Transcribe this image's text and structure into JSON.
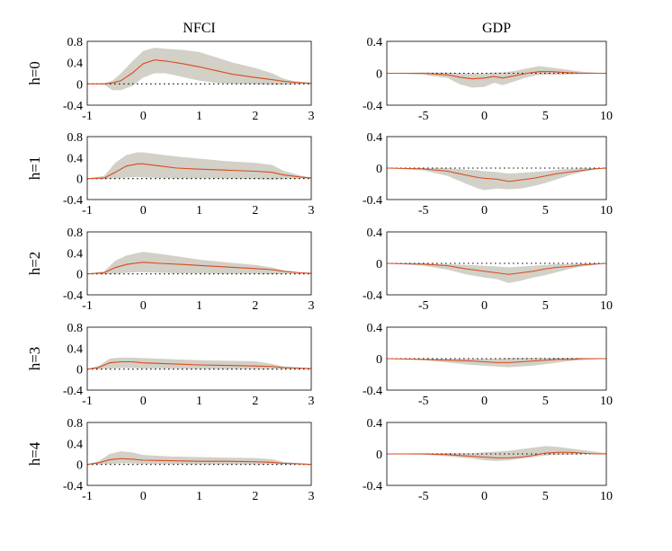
{
  "chart_data": {
    "type": "line",
    "columns": [
      {
        "title": "NFCI",
        "x_ticks": [
          -1,
          0,
          1,
          2,
          3
        ],
        "xlim": [
          -1,
          3
        ],
        "ylim": [
          -0.4,
          0.8
        ],
        "y_ticks": [
          0.8,
          0.4,
          0,
          -0.4
        ],
        "y_tick_labels": [
          "0.8",
          "0.4",
          "0",
          "-0.4"
        ]
      },
      {
        "title": "GDP",
        "x_ticks": [
          -5,
          0,
          5,
          10
        ],
        "xlim": [
          -8,
          10
        ],
        "ylim": [
          -0.4,
          0.4
        ],
        "y_ticks": [
          0.4,
          0,
          -0.4
        ],
        "y_tick_labels": [
          "0.4",
          "0",
          "-0.4"
        ]
      }
    ],
    "rows": [
      {
        "label": "h=0",
        "nfci": {
          "x": [
            -1,
            -0.7,
            -0.55,
            -0.4,
            -0.2,
            0,
            0.2,
            0.4,
            0.7,
            1.0,
            1.3,
            1.6,
            2.0,
            2.3,
            2.5,
            2.7,
            3.0
          ],
          "median": [
            0,
            0,
            0.02,
            0.06,
            0.2,
            0.38,
            0.45,
            0.43,
            0.38,
            0.32,
            0.25,
            0.18,
            0.12,
            0.08,
            0.05,
            0.03,
            0.01
          ],
          "upper": [
            0,
            0.01,
            0.06,
            0.2,
            0.42,
            0.62,
            0.68,
            0.66,
            0.64,
            0.6,
            0.5,
            0.4,
            0.3,
            0.2,
            0.1,
            0.05,
            0.02
          ],
          "lower": [
            0,
            -0.01,
            -0.12,
            -0.12,
            -0.04,
            0.12,
            0.2,
            0.2,
            0.13,
            0.06,
            0.02,
            0,
            -0.01,
            -0.02,
            -0.02,
            -0.01,
            0
          ]
        },
        "gdp": {
          "x": [
            -8,
            -5,
            -3,
            -2,
            -1,
            0,
            0.8,
            1.5,
            2.5,
            3.5,
            4.5,
            5.5,
            6.5,
            8,
            10
          ],
          "median": [
            0,
            0,
            -0.02,
            -0.05,
            -0.07,
            -0.06,
            -0.04,
            -0.06,
            -0.03,
            0,
            0.02,
            0.02,
            0.01,
            0,
            0
          ],
          "upper": [
            0,
            0.01,
            0.01,
            0,
            0,
            0,
            0.01,
            0.01,
            0.03,
            0.06,
            0.09,
            0.07,
            0.05,
            0.02,
            0
          ],
          "lower": [
            0,
            -0.02,
            -0.06,
            -0.14,
            -0.18,
            -0.17,
            -0.12,
            -0.15,
            -0.1,
            -0.05,
            -0.02,
            -0.02,
            -0.02,
            -0.01,
            0
          ]
        }
      },
      {
        "label": "h=1",
        "nfci": {
          "x": [
            -1,
            -0.7,
            -0.5,
            -0.3,
            -0.1,
            0,
            0.3,
            0.6,
            1.0,
            1.5,
            2.0,
            2.3,
            2.5,
            2.8,
            3.0
          ],
          "median": [
            0,
            0.01,
            0.12,
            0.24,
            0.28,
            0.28,
            0.24,
            0.2,
            0.18,
            0.16,
            0.14,
            0.12,
            0.07,
            0.03,
            0.01
          ],
          "upper": [
            0,
            0.05,
            0.3,
            0.45,
            0.5,
            0.5,
            0.46,
            0.42,
            0.38,
            0.33,
            0.3,
            0.26,
            0.15,
            0.06,
            0.02
          ],
          "lower": [
            0,
            -0.01,
            0,
            0.02,
            0.03,
            0.02,
            0.01,
            0,
            0,
            0,
            -0.01,
            -0.02,
            -0.01,
            0,
            0
          ]
        },
        "gdp": {
          "x": [
            -8,
            -5,
            -3,
            -1.5,
            -0.5,
            0,
            1,
            2,
            3,
            4,
            5,
            6,
            7,
            8,
            9,
            10
          ],
          "median": [
            0,
            -0.01,
            -0.04,
            -0.09,
            -0.12,
            -0.13,
            -0.14,
            -0.17,
            -0.15,
            -0.13,
            -0.1,
            -0.07,
            -0.05,
            -0.03,
            -0.01,
            0
          ],
          "upper": [
            0,
            0,
            0,
            -0.02,
            -0.03,
            -0.04,
            -0.05,
            -0.07,
            -0.06,
            -0.05,
            -0.04,
            -0.02,
            -0.01,
            0,
            0,
            0
          ],
          "lower": [
            0,
            -0.03,
            -0.1,
            -0.2,
            -0.26,
            -0.28,
            -0.26,
            -0.27,
            -0.26,
            -0.23,
            -0.19,
            -0.14,
            -0.09,
            -0.05,
            -0.02,
            0
          ]
        }
      },
      {
        "label": "h=2",
        "nfci": {
          "x": [
            -1,
            -0.7,
            -0.5,
            -0.3,
            -0.1,
            0,
            0.3,
            0.7,
            1.0,
            1.5,
            2.0,
            2.3,
            2.5,
            2.8,
            3.0
          ],
          "median": [
            0,
            0.02,
            0.12,
            0.18,
            0.21,
            0.22,
            0.2,
            0.18,
            0.16,
            0.13,
            0.1,
            0.08,
            0.05,
            0.02,
            0.01
          ],
          "upper": [
            0,
            0.05,
            0.25,
            0.35,
            0.4,
            0.42,
            0.38,
            0.32,
            0.27,
            0.22,
            0.17,
            0.12,
            0.07,
            0.03,
            0.01
          ],
          "lower": [
            0,
            -0.01,
            0,
            0.02,
            0.03,
            0.03,
            0.02,
            0.01,
            0.01,
            0,
            0,
            -0.01,
            0,
            0,
            0
          ]
        },
        "gdp": {
          "x": [
            -8,
            -5,
            -3,
            -1.5,
            0,
            1,
            2,
            3,
            4,
            5,
            6,
            7,
            8,
            9,
            10
          ],
          "median": [
            0,
            -0.01,
            -0.03,
            -0.07,
            -0.1,
            -0.12,
            -0.14,
            -0.12,
            -0.1,
            -0.07,
            -0.05,
            -0.04,
            -0.02,
            -0.01,
            0
          ],
          "upper": [
            0,
            0,
            -0.01,
            -0.02,
            -0.03,
            -0.04,
            -0.05,
            -0.04,
            -0.03,
            -0.02,
            -0.01,
            -0.01,
            0,
            0,
            0
          ],
          "lower": [
            0,
            -0.03,
            -0.08,
            -0.14,
            -0.18,
            -0.2,
            -0.25,
            -0.22,
            -0.18,
            -0.15,
            -0.11,
            -0.07,
            -0.04,
            -0.02,
            0
          ]
        }
      },
      {
        "label": "h=3",
        "nfci": {
          "x": [
            -1,
            -0.8,
            -0.6,
            -0.4,
            -0.2,
            0,
            0.5,
            1.0,
            1.5,
            2.0,
            2.3,
            2.5,
            2.8,
            3.0
          ],
          "median": [
            0,
            0.03,
            0.12,
            0.14,
            0.14,
            0.12,
            0.1,
            0.08,
            0.07,
            0.06,
            0.05,
            0.03,
            0.02,
            0.01
          ],
          "upper": [
            0,
            0.06,
            0.2,
            0.22,
            0.22,
            0.21,
            0.19,
            0.17,
            0.16,
            0.15,
            0.1,
            0.05,
            0.03,
            0.01
          ],
          "lower": [
            0,
            0,
            0.01,
            0.02,
            0.02,
            0.01,
            0.01,
            0,
            0,
            0,
            0,
            0,
            0,
            0
          ]
        },
        "gdp": {
          "x": [
            -8,
            -5,
            -3,
            -1,
            0,
            1,
            2,
            3,
            4,
            5,
            6,
            7,
            8,
            9,
            10
          ],
          "median": [
            0,
            -0.01,
            -0.02,
            -0.03,
            -0.04,
            -0.05,
            -0.05,
            -0.04,
            -0.03,
            -0.02,
            -0.01,
            -0.01,
            0,
            0,
            0
          ],
          "upper": [
            0,
            0,
            0,
            0,
            0,
            0,
            0.01,
            0.01,
            0.01,
            0.01,
            0.01,
            0.01,
            0.01,
            0,
            0
          ],
          "lower": [
            0,
            -0.02,
            -0.05,
            -0.08,
            -0.09,
            -0.1,
            -0.11,
            -0.1,
            -0.09,
            -0.07,
            -0.05,
            -0.03,
            -0.02,
            -0.01,
            0
          ]
        }
      },
      {
        "label": "h=4",
        "nfci": {
          "x": [
            -1,
            -0.8,
            -0.6,
            -0.4,
            -0.2,
            0,
            0.5,
            1.0,
            1.5,
            2.0,
            2.3,
            2.5,
            2.8,
            3.0
          ],
          "median": [
            0,
            0.03,
            0.09,
            0.11,
            0.1,
            0.08,
            0.07,
            0.06,
            0.06,
            0.05,
            0.04,
            0.02,
            0.01,
            0
          ],
          "upper": [
            0,
            0.06,
            0.2,
            0.25,
            0.23,
            0.18,
            0.15,
            0.14,
            0.13,
            0.12,
            0.1,
            0.05,
            0.02,
            0.01
          ],
          "lower": [
            0,
            0,
            0.01,
            0.02,
            0.02,
            0.01,
            0.01,
            0,
            0,
            0,
            0,
            0,
            0,
            0
          ]
        },
        "gdp": {
          "x": [
            -8,
            -5,
            -3,
            -1,
            0,
            1,
            2,
            3,
            4,
            5,
            6,
            7,
            8,
            9,
            10
          ],
          "median": [
            0,
            0,
            -0.01,
            -0.03,
            -0.04,
            -0.05,
            -0.05,
            -0.04,
            -0.02,
            0.01,
            0.02,
            0.02,
            0.01,
            0,
            0
          ],
          "upper": [
            0,
            0.01,
            0.01,
            0.01,
            0.02,
            0.03,
            0.04,
            0.06,
            0.08,
            0.1,
            0.09,
            0.07,
            0.05,
            0.03,
            0.01
          ],
          "lower": [
            0,
            -0.01,
            -0.03,
            -0.06,
            -0.08,
            -0.09,
            -0.08,
            -0.06,
            -0.04,
            -0.02,
            -0.01,
            -0.01,
            0,
            0,
            0
          ]
        }
      }
    ],
    "colors": {
      "band": "#d2d0c7",
      "median": "#d94a1e",
      "zero_line": "#000000"
    }
  }
}
